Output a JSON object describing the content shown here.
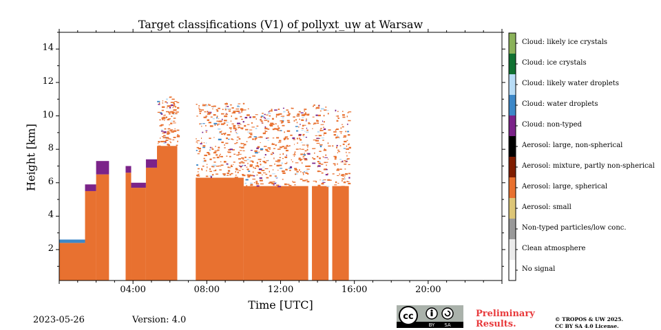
{
  "chart_data": {
    "type": "heatmap",
    "title": "Target classifications (V1) of pollyxt_uw at Warsaw",
    "xlabel": "Time [UTC]",
    "ylabel": "Height [km]",
    "xlim_hours": [
      0,
      24
    ],
    "ylim_km": [
      0.15,
      15.0
    ],
    "x_ticks": [
      "04:00",
      "08:00",
      "12:00",
      "16:00",
      "20:00"
    ],
    "x_tick_hours": [
      4,
      8,
      12,
      16,
      20
    ],
    "y_ticks": [
      "2",
      "4",
      "6",
      "8",
      "10",
      "12",
      "14"
    ],
    "y_tick_values": [
      2,
      4,
      6,
      8,
      10,
      12,
      14
    ],
    "data_extent_hours": [
      0,
      15.7
    ],
    "classes": [
      {
        "label": "No signal",
        "color": "#ffffff"
      },
      {
        "label": "Clean atmosphere",
        "color": "#ebebeb"
      },
      {
        "label": "Non-typed particles/low conc.",
        "color": "#999999"
      },
      {
        "label": "Aerosol: small",
        "color": "#ddc677"
      },
      {
        "label": "Aerosol: large, spherical",
        "color": "#e87130"
      },
      {
        "label": "Aerosol: mixture, partly non-spherical",
        "color": "#7f1d00"
      },
      {
        "label": "Aerosol: large, non-spherical",
        "color": "#000000"
      },
      {
        "label": "Cloud: non-typed",
        "color": "#7b2389"
      },
      {
        "label": "Cloud: water droplets",
        "color": "#3d88c8"
      },
      {
        "label": "Cloud: likely water droplets",
        "color": "#b8dcf6"
      },
      {
        "label": "Cloud: ice crystals",
        "color": "#117132"
      },
      {
        "label": "Cloud: likely ice crystals",
        "color": "#8bb25a"
      }
    ],
    "segments": [
      {
        "t0": 0.0,
        "t1": 1.4,
        "aerosol_top_km": 2.4,
        "cloud_top_km": 2.6,
        "cloud_class": 8
      },
      {
        "t0": 1.4,
        "t1": 2.0,
        "aerosol_top_km": 5.5,
        "cloud_top_km": 5.9,
        "cloud_class": 7
      },
      {
        "t0": 2.0,
        "t1": 2.7,
        "aerosol_top_km": 6.5,
        "cloud_top_km": 7.3,
        "cloud_class": 7
      },
      {
        "t0": 3.6,
        "t1": 3.9,
        "aerosol_top_km": 6.6,
        "cloud_top_km": 7.0,
        "cloud_class": 7
      },
      {
        "t0": 3.9,
        "t1": 4.7,
        "aerosol_top_km": 5.7,
        "cloud_top_km": 6.0,
        "cloud_class": 7
      },
      {
        "t0": 4.7,
        "t1": 5.3,
        "aerosol_top_km": 6.9,
        "cloud_top_km": 7.4,
        "cloud_class": 7
      },
      {
        "t0": 5.3,
        "t1": 6.4,
        "aerosol_top_km": 8.2,
        "cloud_top_km": 11.2,
        "cloud_class": 7
      },
      {
        "t0": 7.4,
        "t1": 10.0,
        "aerosol_top_km": 6.3,
        "cloud_top_km": 10.8,
        "cloud_class": 7
      },
      {
        "t0": 10.0,
        "t1": 13.5,
        "aerosol_top_km": 5.8,
        "cloud_top_km": 10.5,
        "cloud_class": 7
      },
      {
        "t0": 13.7,
        "t1": 14.6,
        "aerosol_top_km": 5.8,
        "cloud_top_km": 10.7,
        "cloud_class": 7
      },
      {
        "t0": 14.8,
        "t1": 15.7,
        "aerosol_top_km": 5.8,
        "cloud_top_km": 10.4,
        "cloud_class": 7
      }
    ]
  },
  "footer": {
    "date": "2023-05-26",
    "version": "Version: 4.0",
    "preliminary_line1": "Preliminary",
    "preliminary_line2": "Results.",
    "copyright_line1": "© TROPOS & UW 2025.",
    "copyright_line2": "CC BY SA 4.0 License.",
    "cc_badge": {
      "cc": "cc",
      "by": "BY",
      "sa": "SA"
    }
  }
}
